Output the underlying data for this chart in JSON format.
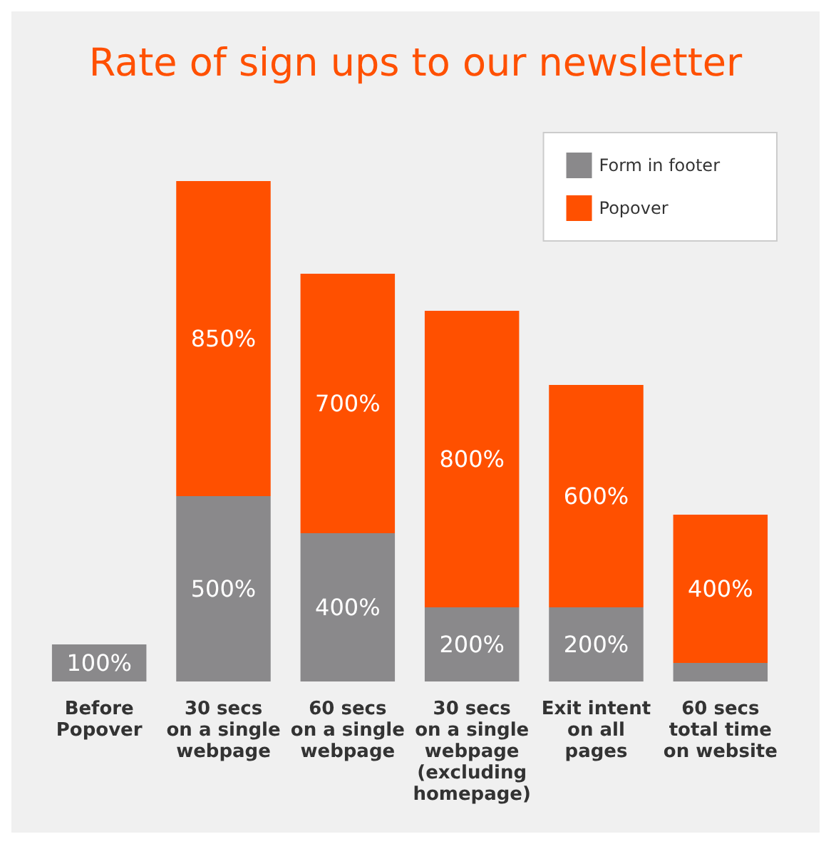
{
  "chart_data": {
    "type": "bar",
    "title": "Rate of sign ups to our newsletter",
    "stacked": true,
    "legend": "top right",
    "categories": [
      "Before\nPopover",
      "30 secs\non a single\nwebpage",
      "60 secs\non a single\nwebpage",
      "30 secs\non a single\nwebpage\n(excluding\nhomepage)",
      "Exit intent\non all\npages",
      "60 secs\ntotal time\non website"
    ],
    "series": [
      {
        "name": "Form in footer",
        "color": "#8a898b",
        "values": [
          100,
          500,
          400,
          200,
          200,
          50
        ],
        "value_labels": [
          "100%",
          "500%",
          "400%",
          "200%",
          "200%",
          null
        ]
      },
      {
        "name": "Popover",
        "color": "#ff5000",
        "values": [
          null,
          850,
          700,
          800,
          600,
          400
        ],
        "value_labels": [
          null,
          "850%",
          "700%",
          "800%",
          "600%",
          "400%"
        ]
      }
    ]
  }
}
